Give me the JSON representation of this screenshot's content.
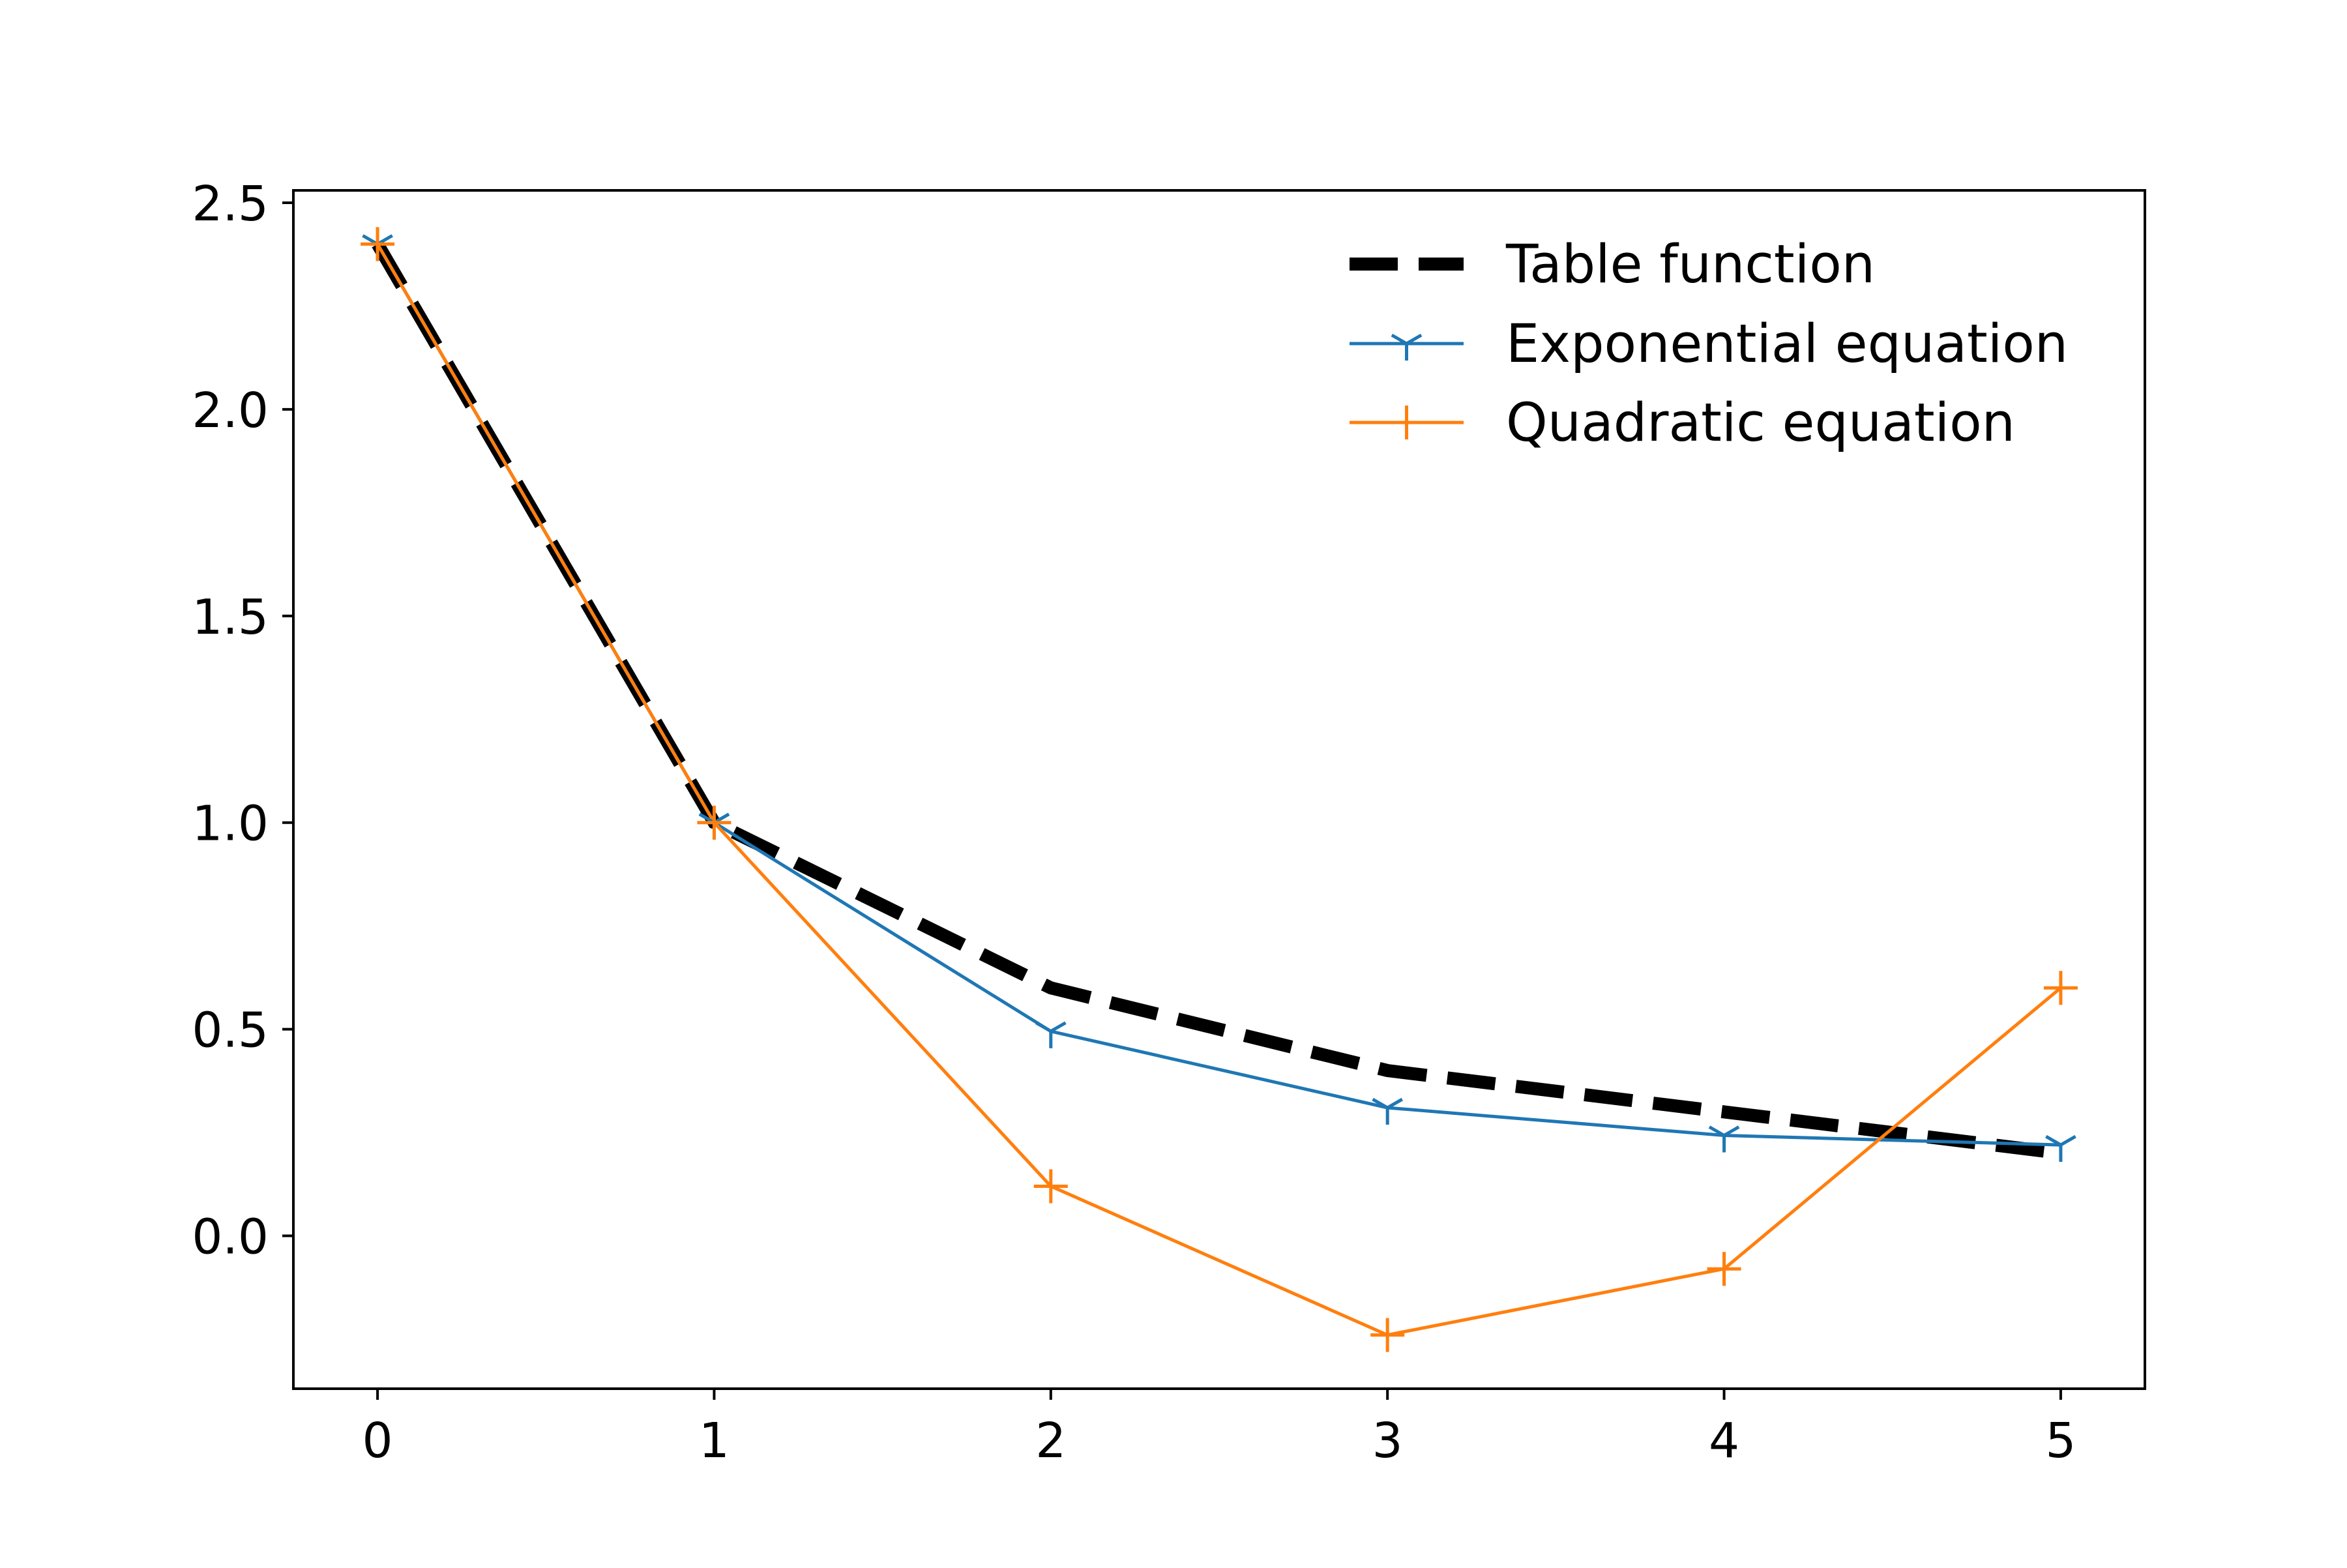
{
  "chart_data": {
    "type": "line",
    "title": "",
    "xlabel": "",
    "ylabel": "",
    "x": [
      0,
      1,
      2,
      3,
      4,
      5
    ],
    "xlim": [
      -0.25,
      5.25
    ],
    "ylim": [
      -0.37,
      2.53
    ],
    "xticks": [
      0,
      1,
      2,
      3,
      4,
      5
    ],
    "yticks": [
      -0.0,
      0.5,
      1.0,
      1.5,
      2.0,
      2.5
    ],
    "xtick_labels": [
      "0",
      "1",
      "2",
      "3",
      "4",
      "5"
    ],
    "ytick_labels": [
      "0.0",
      "0.5",
      "1.0",
      "1.5",
      "2.0",
      "2.5"
    ],
    "grid": false,
    "legend_position": "upper right",
    "series": [
      {
        "name": "Table function",
        "values": [
          2.4,
          1.0,
          0.6,
          0.4,
          0.3,
          0.2
        ],
        "color": "#000000",
        "line_style": "dashed",
        "marker": "none"
      },
      {
        "name": "Exponential equation",
        "values": [
          2.4,
          1.0,
          0.495,
          0.31,
          0.243,
          0.22
        ],
        "color": "#1f77b4",
        "line_style": "solid",
        "marker": "tri-down"
      },
      {
        "name": "Quadratic equation",
        "values": [
          2.4,
          1.0,
          0.12,
          -0.24,
          -0.08,
          0.6
        ],
        "color": "#ff7f0e",
        "line_style": "solid",
        "marker": "plus"
      }
    ]
  }
}
